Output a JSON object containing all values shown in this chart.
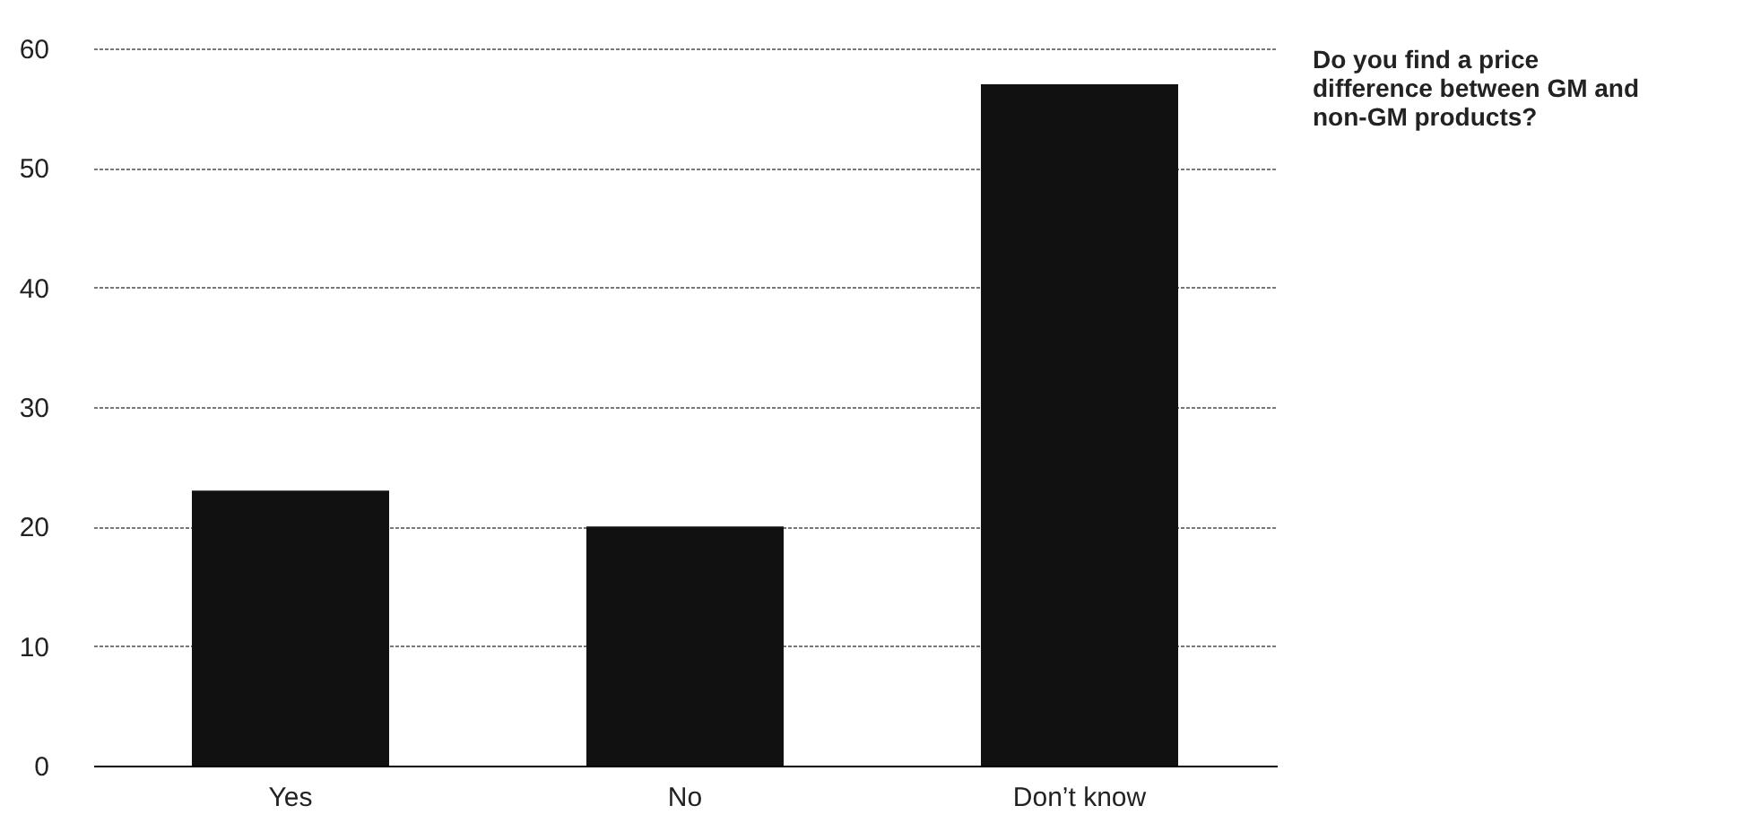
{
  "chart_data": {
    "type": "bar",
    "title": "Do you find a price difference between GM and non-GM products?",
    "categories": [
      "Yes",
      "No",
      "Don’t know"
    ],
    "values": [
      23,
      20,
      57
    ],
    "color": "#111111",
    "ylim": [
      0,
      60
    ],
    "yticks": [
      0,
      10,
      20,
      30,
      40,
      50,
      60
    ],
    "grid": "y"
  }
}
